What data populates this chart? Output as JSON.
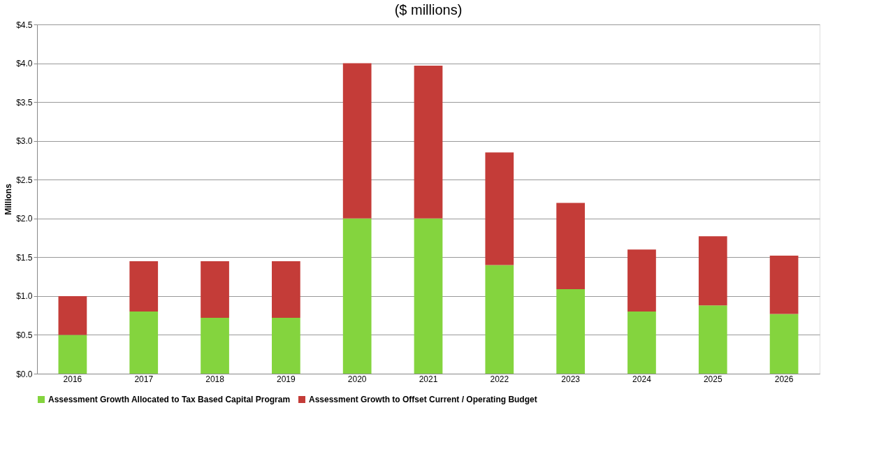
{
  "chart_data": {
    "type": "bar",
    "stacked": true,
    "title": "($ millions)",
    "ylabel": "Millions",
    "categories": [
      "2016",
      "2017",
      "2018",
      "2019",
      "2020",
      "2021",
      "2022",
      "2023",
      "2024",
      "2025",
      "2026"
    ],
    "series": [
      {
        "name": "Assessment Growth Allocated to Tax Based Capital Program",
        "color": "#84d43e",
        "values": [
          0.5,
          0.8,
          0.72,
          0.72,
          2.0,
          2.0,
          1.4,
          1.09,
          0.8,
          0.88,
          0.77
        ]
      },
      {
        "name": "Assessment Growth to Offset Current / Operating Budget",
        "color": "#c43c38",
        "values": [
          0.5,
          0.65,
          0.73,
          0.73,
          2.0,
          1.97,
          1.45,
          1.11,
          0.8,
          0.89,
          0.75
        ]
      }
    ],
    "ylim": [
      0,
      4.5
    ],
    "yticks": [
      {
        "value": 0,
        "label": "$0.0"
      },
      {
        "value": 0.5,
        "label": "$0.5"
      },
      {
        "value": 1,
        "label": "$1.0"
      },
      {
        "value": 1.5,
        "label": "$1.5"
      },
      {
        "value": 2,
        "label": "$2.0"
      },
      {
        "value": 2.5,
        "label": "$2.5"
      },
      {
        "value": 3,
        "label": "$3.0"
      },
      {
        "value": 3.5,
        "label": "$3.5"
      },
      {
        "value": 4,
        "label": "$4.0"
      },
      {
        "value": 4.5,
        "label": "$4.5"
      }
    ],
    "grid": "y",
    "legend": "bottom"
  }
}
